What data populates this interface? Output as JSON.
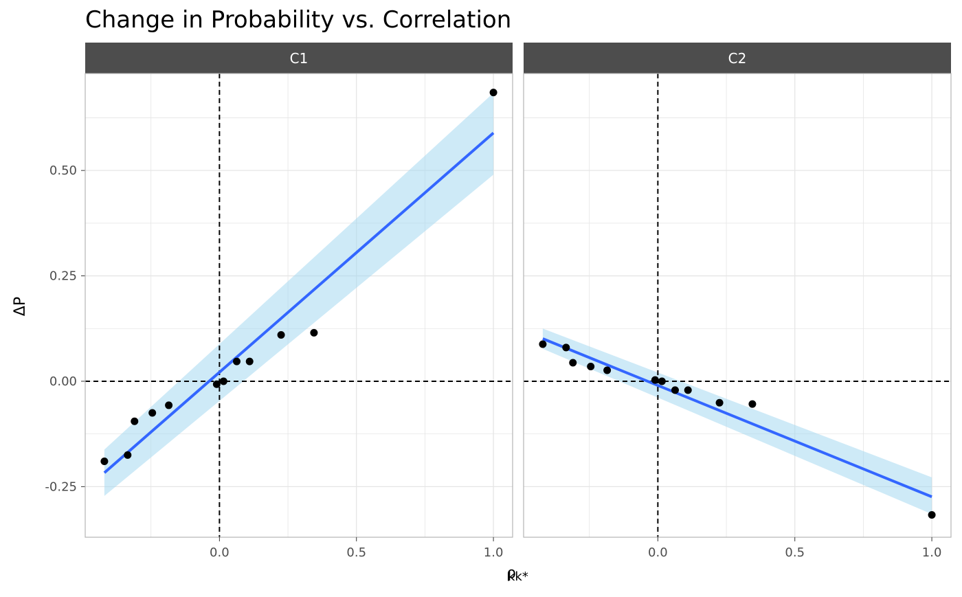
{
  "chart_data": {
    "type": "scatter",
    "title": "Change in Probability vs. Correlation",
    "xlabel": "ρkk*",
    "xlabel_main": "ρ",
    "xlabel_sub": "kk*",
    "ylabel": "ΔP",
    "xlim": [
      -0.49,
      1.07
    ],
    "ylim": [
      -0.37,
      0.73
    ],
    "x_ticks": [
      0.0,
      0.5,
      1.0
    ],
    "x_tick_labels": [
      "0.0",
      "0.5",
      "1.0"
    ],
    "y_ticks": [
      -0.25,
      0.0,
      0.25,
      0.5
    ],
    "y_tick_labels": [
      "-0.25",
      "0.00",
      "0.25",
      "0.50"
    ],
    "reference_lines": {
      "x": 0,
      "y": 0,
      "style": "dashed"
    },
    "grid": true,
    "colors": {
      "points": "#000000",
      "fit_line": "#3366FF",
      "ribbon": "#A6D8F0",
      "strip_bg": "#4D4D4D",
      "panel_border": "#B3B3B3",
      "grid": "#E5E5E5"
    },
    "panels": [
      {
        "label": "C1",
        "points": [
          {
            "x": -0.42,
            "y": -0.19
          },
          {
            "x": -0.335,
            "y": -0.175
          },
          {
            "x": -0.31,
            "y": -0.095
          },
          {
            "x": -0.245,
            "y": -0.075
          },
          {
            "x": -0.185,
            "y": -0.057
          },
          {
            "x": -0.01,
            "y": -0.007
          },
          {
            "x": 0.015,
            "y": 0.0
          },
          {
            "x": 0.063,
            "y": 0.047
          },
          {
            "x": 0.11,
            "y": 0.047
          },
          {
            "x": 0.225,
            "y": 0.11
          },
          {
            "x": 0.345,
            "y": 0.115
          },
          {
            "x": 1.0,
            "y": 0.685
          }
        ],
        "fit": {
          "x": [
            -0.42,
            1.0
          ],
          "y": [
            -0.217,
            0.589
          ],
          "ribbon_lower": [
            -0.272,
            0.49
          ],
          "ribbon_upper": [
            -0.162,
            0.684
          ]
        }
      },
      {
        "label": "C2",
        "points": [
          {
            "x": -0.42,
            "y": 0.088
          },
          {
            "x": -0.335,
            "y": 0.08
          },
          {
            "x": -0.31,
            "y": 0.044
          },
          {
            "x": -0.245,
            "y": 0.035
          },
          {
            "x": -0.185,
            "y": 0.026
          },
          {
            "x": -0.01,
            "y": 0.003
          },
          {
            "x": 0.015,
            "y": 0.0
          },
          {
            "x": 0.063,
            "y": -0.021
          },
          {
            "x": 0.11,
            "y": -0.021
          },
          {
            "x": 0.225,
            "y": -0.051
          },
          {
            "x": 0.345,
            "y": -0.054
          },
          {
            "x": 1.0,
            "y": -0.317
          }
        ],
        "fit": {
          "x": [
            -0.42,
            1.0
          ],
          "y": [
            0.101,
            -0.274
          ],
          "ribbon_lower": [
            0.077,
            -0.315
          ],
          "ribbon_upper": [
            0.125,
            -0.228
          ]
        }
      }
    ]
  }
}
